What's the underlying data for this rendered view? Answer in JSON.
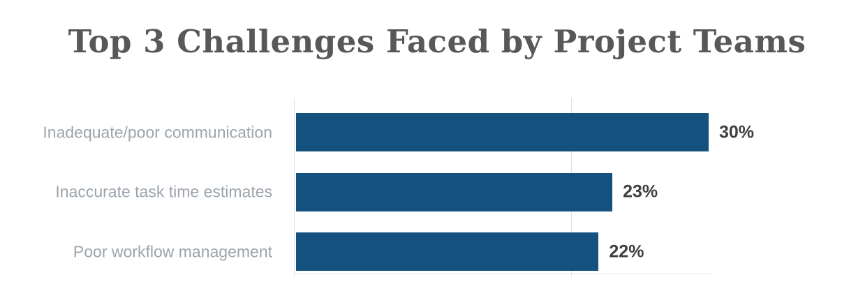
{
  "chart_data": {
    "type": "bar",
    "orientation": "horizontal",
    "title": "Top 3 Challenges Faced by Project Teams",
    "categories": [
      "Inadequate/poor communication",
      "Inaccurate task time estimates",
      "Poor workflow management"
    ],
    "values": [
      30,
      23,
      22
    ],
    "value_labels": [
      "30%",
      "23%",
      "22%"
    ],
    "xlabel": "",
    "ylabel": "",
    "xlim": [
      0,
      40
    ],
    "gridlines_at_percent": [
      0,
      20
    ],
    "grid": "faint vertical lines",
    "legend_position": "none",
    "colors": {
      "bar": "#14517E",
      "title": "#57585A",
      "category_label": "#9CA4AC",
      "value_label": "#3E3E3E",
      "gridline": "#D7E3EE",
      "background": "#FFFFFF"
    }
  }
}
